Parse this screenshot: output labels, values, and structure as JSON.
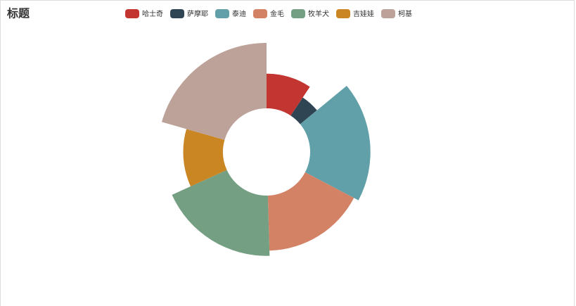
{
  "chart_data": {
    "type": "rose",
    "title": "标题",
    "series": [
      {
        "name": "哈士奇",
        "color": "#c23531",
        "value": 10
      },
      {
        "name": "萨摩耶",
        "color": "#2f4554",
        "value": 5
      },
      {
        "name": "泰迪",
        "color": "#61a0a8",
        "value": 20
      },
      {
        "name": "金毛",
        "color": "#d48265",
        "value": 18
      },
      {
        "name": "牧羊犬",
        "color": "#749f83",
        "value": 20
      },
      {
        "name": "吉娃娃",
        "color": "#ca8622",
        "value": 12
      },
      {
        "name": "柯基",
        "color": "#bda29a",
        "value": 22
      }
    ]
  }
}
